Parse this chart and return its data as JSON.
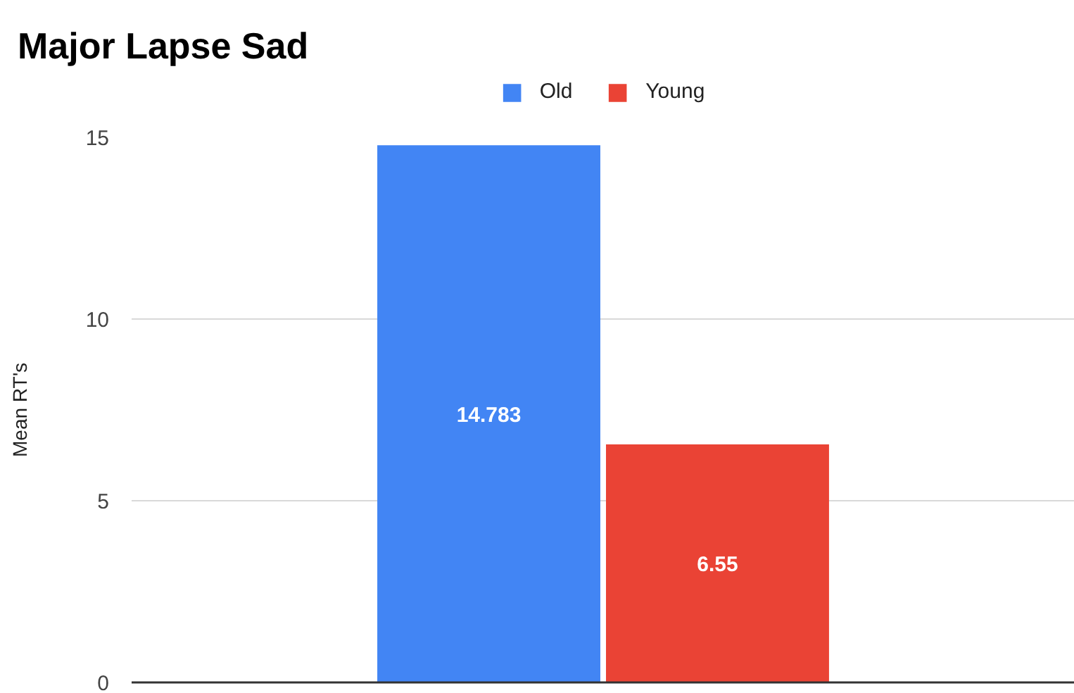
{
  "chart_data": {
    "type": "bar",
    "title": "Major Lapse Sad",
    "ylabel": "Mean RT's",
    "categories": [
      null
    ],
    "series": [
      {
        "name": "Old",
        "color": "#4285f4",
        "values": [
          14.783
        ]
      },
      {
        "name": "Young",
        "color": "#ea4335",
        "values": [
          6.55
        ]
      }
    ],
    "ylim": [
      0,
      15
    ],
    "yticks": [
      0,
      5,
      10,
      15
    ],
    "grid": "y",
    "legend": "top",
    "data_labels": true
  }
}
